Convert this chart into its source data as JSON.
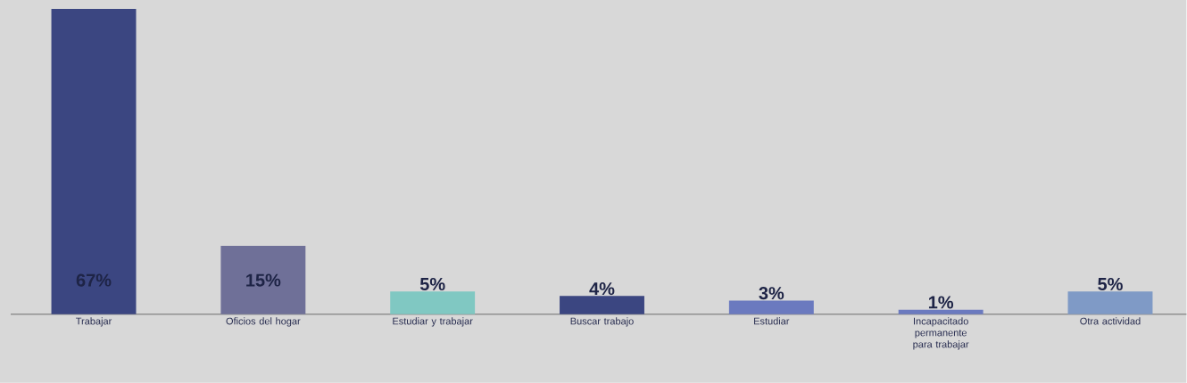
{
  "chart_data": {
    "type": "bar",
    "categories": [
      "Trabajar",
      "Oficios del hogar",
      "Estudiar y trabajar",
      "Buscar trabajo",
      "Estudiar",
      "Incapacitado permanente para trabajar",
      "Otra actividad"
    ],
    "values": [
      67,
      15,
      5,
      4,
      3,
      1,
      5
    ],
    "value_labels": [
      "67%",
      "15%",
      "5%",
      "4%",
      "3%",
      "1%",
      "5%"
    ],
    "colors": [
      "#3b4681",
      "#6f7098",
      "#80c8c2",
      "#3b4681",
      "#6b7abf",
      "#6b7abf",
      "#7f9ac6"
    ]
  }
}
